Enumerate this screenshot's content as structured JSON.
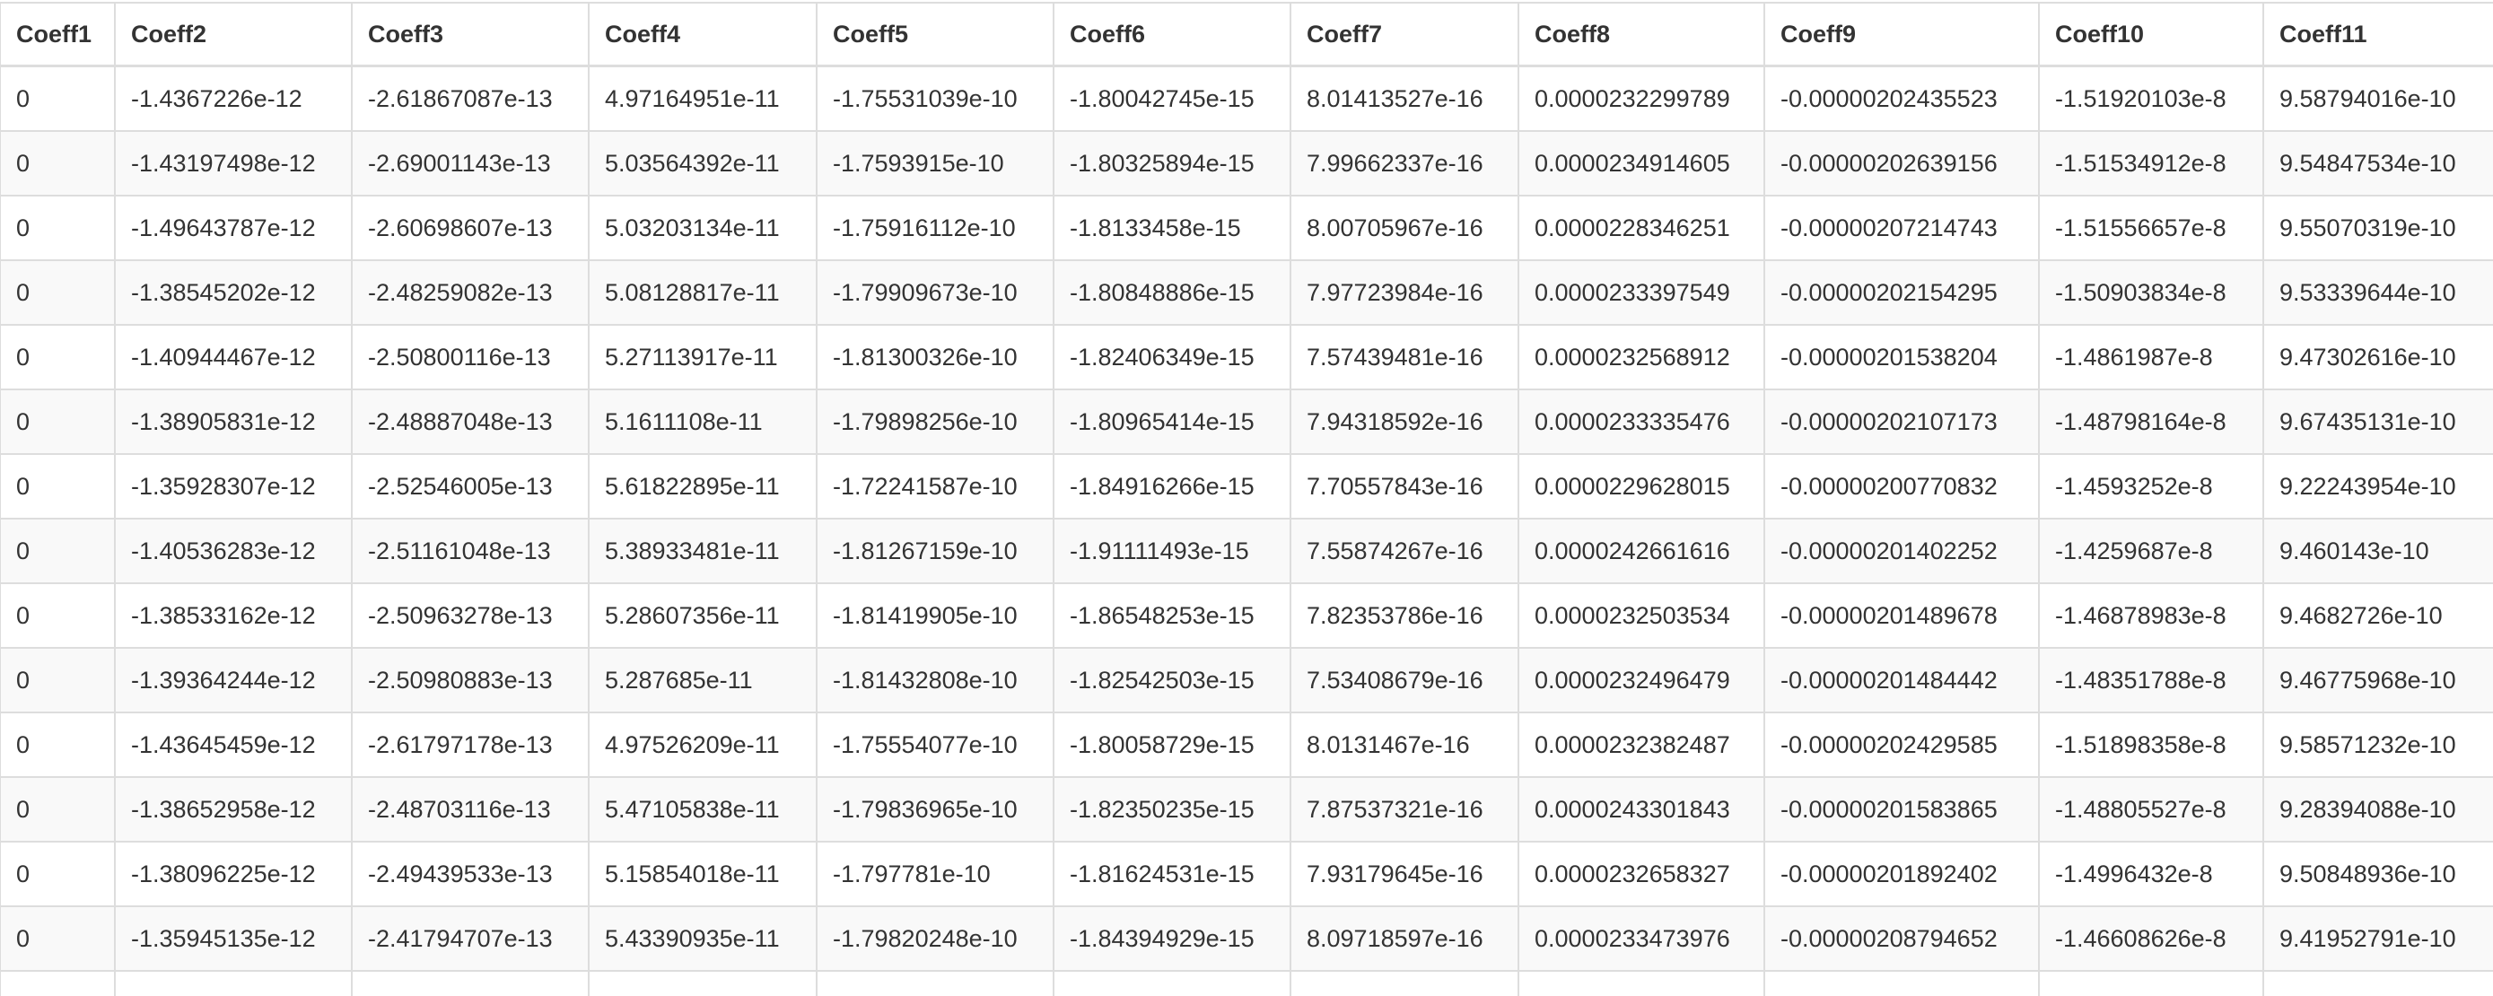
{
  "table": {
    "headers": [
      "Coeff1",
      "Coeff2",
      "Coeff3",
      "Coeff4",
      "Coeff5",
      "Coeff6",
      "Coeff7",
      "Coeff8",
      "Coeff9",
      "Coeff10",
      "Coeff11"
    ],
    "rows": [
      [
        "0",
        "-1.4367226e-12",
        "-2.61867087e-13",
        "4.97164951e-11",
        "-1.75531039e-10",
        "-1.80042745e-15",
        "8.01413527e-16",
        "0.0000232299789",
        "-0.00000202435523",
        "-1.51920103e-8",
        "9.58794016e-10"
      ],
      [
        "0",
        "-1.43197498e-12",
        "-2.69001143e-13",
        "5.03564392e-11",
        "-1.7593915e-10",
        "-1.80325894e-15",
        "7.99662337e-16",
        "0.0000234914605",
        "-0.00000202639156",
        "-1.51534912e-8",
        "9.54847534e-10"
      ],
      [
        "0",
        "-1.49643787e-12",
        "-2.60698607e-13",
        "5.03203134e-11",
        "-1.75916112e-10",
        "-1.8133458e-15",
        "8.00705967e-16",
        "0.0000228346251",
        "-0.00000207214743",
        "-1.51556657e-8",
        "9.55070319e-10"
      ],
      [
        "0",
        "-1.38545202e-12",
        "-2.48259082e-13",
        "5.08128817e-11",
        "-1.79909673e-10",
        "-1.80848886e-15",
        "7.97723984e-16",
        "0.0000233397549",
        "-0.00000202154295",
        "-1.50903834e-8",
        "9.53339644e-10"
      ],
      [
        "0",
        "-1.40944467e-12",
        "-2.50800116e-13",
        "5.27113917e-11",
        "-1.81300326e-10",
        "-1.82406349e-15",
        "7.57439481e-16",
        "0.0000232568912",
        "-0.00000201538204",
        "-1.4861987e-8",
        "9.47302616e-10"
      ],
      [
        "0",
        "-1.38905831e-12",
        "-2.48887048e-13",
        "5.1611108e-11",
        "-1.79898256e-10",
        "-1.80965414e-15",
        "7.94318592e-16",
        "0.0000233335476",
        "-0.00000202107173",
        "-1.48798164e-8",
        "9.67435131e-10"
      ],
      [
        "0",
        "-1.35928307e-12",
        "-2.52546005e-13",
        "5.61822895e-11",
        "-1.72241587e-10",
        "-1.84916266e-15",
        "7.70557843e-16",
        "0.0000229628015",
        "-0.00000200770832",
        "-1.4593252e-8",
        "9.22243954e-10"
      ],
      [
        "0",
        "-1.40536283e-12",
        "-2.51161048e-13",
        "5.38933481e-11",
        "-1.81267159e-10",
        "-1.91111493e-15",
        "7.55874267e-16",
        "0.0000242661616",
        "-0.00000201402252",
        "-1.4259687e-8",
        "9.460143e-10"
      ],
      [
        "0",
        "-1.38533162e-12",
        "-2.50963278e-13",
        "5.28607356e-11",
        "-1.81419905e-10",
        "-1.86548253e-15",
        "7.82353786e-16",
        "0.0000232503534",
        "-0.00000201489678",
        "-1.46878983e-8",
        "9.4682726e-10"
      ],
      [
        "0",
        "-1.39364244e-12",
        "-2.50980883e-13",
        "5.287685e-11",
        "-1.81432808e-10",
        "-1.82542503e-15",
        "7.53408679e-16",
        "0.0000232496479",
        "-0.00000201484442",
        "-1.48351788e-8",
        "9.46775968e-10"
      ],
      [
        "0",
        "-1.43645459e-12",
        "-2.61797178e-13",
        "4.97526209e-11",
        "-1.75554077e-10",
        "-1.80058729e-15",
        "8.0131467e-16",
        "0.0000232382487",
        "-0.00000202429585",
        "-1.51898358e-8",
        "9.58571232e-10"
      ],
      [
        "0",
        "-1.38652958e-12",
        "-2.48703116e-13",
        "5.47105838e-11",
        "-1.79836965e-10",
        "-1.82350235e-15",
        "7.87537321e-16",
        "0.0000243301843",
        "-0.00000201583865",
        "-1.48805527e-8",
        "9.28394088e-10"
      ],
      [
        "0",
        "-1.38096225e-12",
        "-2.49439533e-13",
        "5.15854018e-11",
        "-1.797781e-10",
        "-1.81624531e-15",
        "7.93179645e-16",
        "0.0000232658327",
        "-0.00000201892402",
        "-1.4996432e-8",
        "9.50848936e-10"
      ],
      [
        "0",
        "-1.35945135e-12",
        "-2.41794707e-13",
        "5.43390935e-11",
        "-1.79820248e-10",
        "-1.84394929e-15",
        "8.09718597e-16",
        "0.0000233473976",
        "-0.00000208794652",
        "-1.46608626e-8",
        "9.41952791e-10"
      ],
      [
        "",
        "",
        "",
        "",
        "",
        "",
        "",
        "",
        "",
        "",
        ""
      ]
    ]
  }
}
